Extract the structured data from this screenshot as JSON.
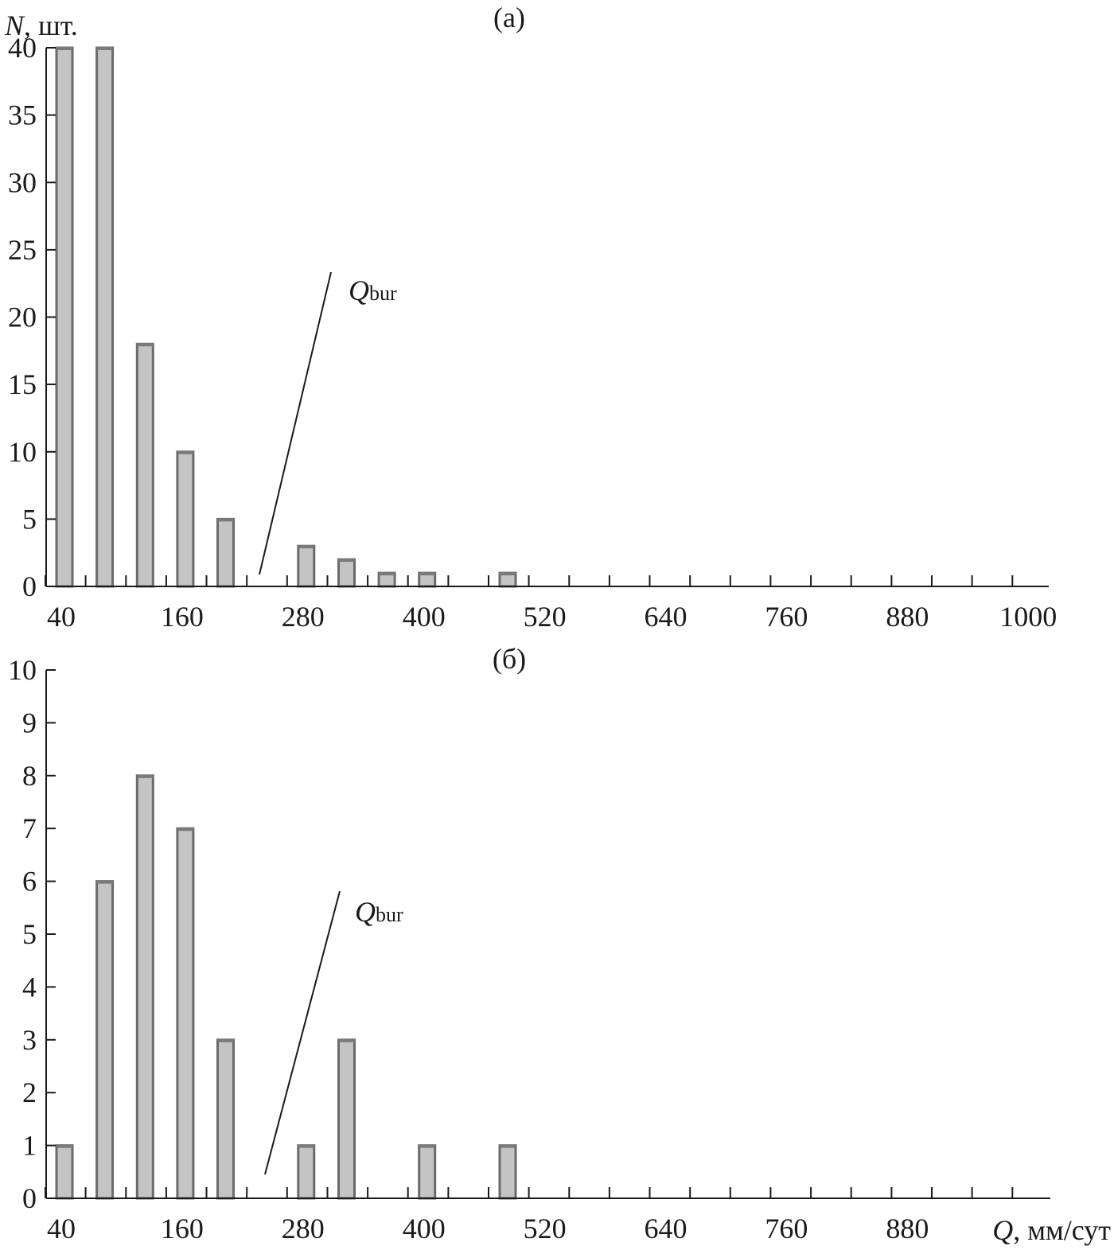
{
  "chart_data": [
    {
      "type": "bar",
      "title": "(a)",
      "ylabel_symbol": "N",
      "ylabel_unit": ", шт.",
      "xlabel_symbol": "",
      "xlabel_unit": "",
      "xlim": [
        40,
        1000
      ],
      "ylim": [
        0,
        40
      ],
      "xticks": [
        40,
        160,
        280,
        400,
        520,
        640,
        760,
        880,
        1000
      ],
      "yticks": [
        0,
        5,
        10,
        15,
        20,
        25,
        30,
        35,
        40
      ],
      "bin_width": 40,
      "x": [
        40,
        80,
        120,
        160,
        200,
        280,
        320,
        360,
        400,
        480
      ],
      "values": [
        40,
        40,
        18,
        10,
        5,
        3,
        2,
        1,
        1,
        1
      ],
      "annotation": {
        "symbol": "Q",
        "subscript": "bur",
        "points_to_x": 240
      },
      "grid": false
    },
    {
      "type": "bar",
      "title": "(б)",
      "ylabel_symbol": "",
      "ylabel_unit": "",
      "xlabel_symbol": "Q",
      "xlabel_unit": ", мм/сут",
      "xlim": [
        40,
        1000
      ],
      "ylim": [
        0,
        10
      ],
      "xticks": [
        40,
        160,
        280,
        400,
        520,
        640,
        760,
        880
      ],
      "yticks": [
        0,
        1,
        2,
        3,
        4,
        5,
        6,
        7,
        8,
        9,
        10
      ],
      "bin_width": 40,
      "x": [
        40,
        80,
        120,
        160,
        200,
        280,
        320,
        400,
        480
      ],
      "values": [
        1,
        6,
        8,
        7,
        3,
        1,
        3,
        1,
        1
      ],
      "annotation": {
        "symbol": "Q",
        "subscript": "bur",
        "points_to_x": 240
      },
      "grid": false
    }
  ]
}
